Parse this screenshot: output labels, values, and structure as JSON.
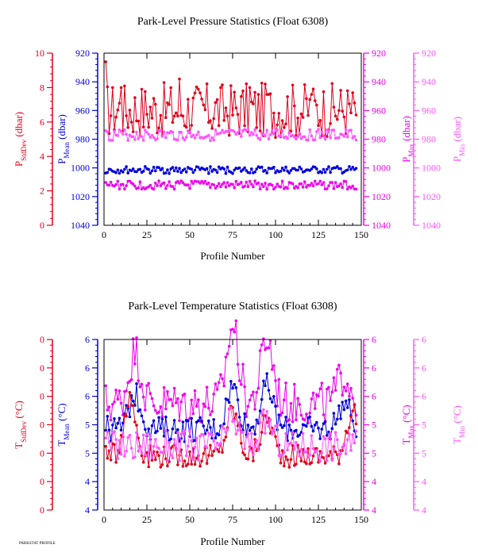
{
  "footer_note": "PARKSTAT PROFILE",
  "colors": {
    "red": "#e0001b",
    "blue": "#0000dd",
    "magenta": "#ee00ee",
    "pink": "#ff55ff"
  },
  "chart_data": [
    {
      "type": "line",
      "title": "Park-Level Pressure Statistics (Float 6308)",
      "xlabel": "Profile Number",
      "xlim": [
        0,
        150
      ],
      "xticks": [
        "0",
        "25",
        "50",
        "75",
        "100",
        "125",
        "150"
      ],
      "axes": {
        "stddev": {
          "label_main": "P",
          "label_sub": "StdDev",
          "label_unit": "(dbar)",
          "range": [
            0,
            10
          ],
          "ticks": [
            "0",
            "2",
            "4",
            "6",
            "8",
            "10"
          ],
          "color": "#e0001b"
        },
        "mean": {
          "label_main": "P",
          "label_sub": "Mean",
          "label_unit": "(dbar)",
          "range": [
            1040,
            920
          ],
          "ticks": [
            "1040",
            "1020",
            "1000",
            "980",
            "960",
            "940",
            "920"
          ],
          "color": "#0000dd"
        },
        "max": {
          "label_main": "P",
          "label_sub": "Max",
          "label_unit": "(dbar)",
          "range": [
            1040,
            920
          ],
          "ticks": [
            "1040",
            "1020",
            "1000",
            "980",
            "960",
            "940",
            "920"
          ],
          "color": "#ee00ee"
        },
        "min": {
          "label_main": "P",
          "label_sub": "Min",
          "label_unit": "(dbar)",
          "range": [
            1040,
            920
          ],
          "ticks": [
            "1040",
            "1020",
            "1000",
            "980",
            "960",
            "940",
            "920"
          ],
          "color": "#ff55ff"
        }
      },
      "series": [
        {
          "axis": "stddev",
          "color": "#e0001b",
          "base": 6.7,
          "amp": 1.6,
          "spikes": [
            [
              1,
              9.5
            ],
            [
              10,
              8.0
            ],
            [
              44,
              8.5
            ],
            [
              85,
              8.0
            ],
            [
              95,
              7.6
            ],
            [
              121,
              7.6
            ],
            [
              145,
              7.7
            ]
          ]
        },
        {
          "axis": "mean",
          "color": "#0000dd",
          "base": 1001.5,
          "amp": 2.5,
          "spikes": []
        },
        {
          "axis": "max",
          "color": "#ee00ee",
          "base": 1012,
          "amp": 3.0,
          "spikes": []
        },
        {
          "axis": "min",
          "color": "#ff55ff",
          "base": 977,
          "amp": 4.0,
          "spikes": []
        }
      ]
    },
    {
      "type": "line",
      "title": "Park-Level Temperature Statistics (Float 6308)",
      "xlabel": "Profile Number",
      "xlim": [
        0,
        150
      ],
      "xticks": [
        "0",
        "25",
        "50",
        "75",
        "100",
        "125",
        "150"
      ],
      "axes": {
        "stddev": {
          "label_main": "T",
          "label_sub": "StdDev",
          "label_unit": "(°C)",
          "range": [
            0,
            6
          ],
          "ticks": [
            "0",
            "0",
            "0",
            "0",
            "0",
            "0",
            "0"
          ],
          "color": "#e0001b"
        },
        "mean": {
          "label_main": "T",
          "label_sub": "Mean",
          "label_unit": "(°C)",
          "range": [
            4,
            6
          ],
          "ticks": [
            "4",
            "4",
            "5",
            "5",
            "6",
            "6",
            "6"
          ],
          "color": "#0000dd"
        },
        "max": {
          "label_main": "T",
          "label_sub": "Max",
          "label_unit": "(°C)",
          "range": [
            4,
            6
          ],
          "ticks": [
            "4",
            "4",
            "5",
            "5",
            "6",
            "6",
            "6"
          ],
          "color": "#ee00ee"
        },
        "min": {
          "label_main": "T",
          "label_sub": "Min",
          "label_unit": "(°C)",
          "range": [
            4,
            6
          ],
          "ticks": [
            "4",
            "4",
            "5",
            "5",
            "6",
            "6",
            "6"
          ],
          "color": "#ff55ff"
        }
      },
      "series": [
        {
          "axis": "max",
          "color": "#ee00ee",
          "base": 5.25,
          "amp": 0.25,
          "humps": [
            [
              18,
              0.6
            ],
            [
              75,
              0.9
            ],
            [
              95,
              0.75
            ],
            [
              140,
              0.35
            ]
          ]
        },
        {
          "axis": "mean",
          "color": "#0000dd",
          "base": 4.95,
          "amp": 0.15,
          "humps": [
            [
              18,
              0.4
            ],
            [
              75,
              0.5
            ],
            [
              95,
              0.5
            ],
            [
              140,
              0.3
            ]
          ]
        },
        {
          "axis": "stddev",
          "color": "#e0001b",
          "base": 1.9,
          "amp": 0.4,
          "humps": [
            [
              15,
              2.0
            ],
            [
              75,
              1.6
            ],
            [
              95,
              1.3
            ],
            [
              145,
              1.6
            ]
          ]
        },
        {
          "axis": "min",
          "color": "#ff55ff",
          "base": 4.75,
          "amp": 0.18,
          "humps": [
            [
              75,
              0.3
            ],
            [
              95,
              0.3
            ]
          ]
        }
      ]
    }
  ]
}
